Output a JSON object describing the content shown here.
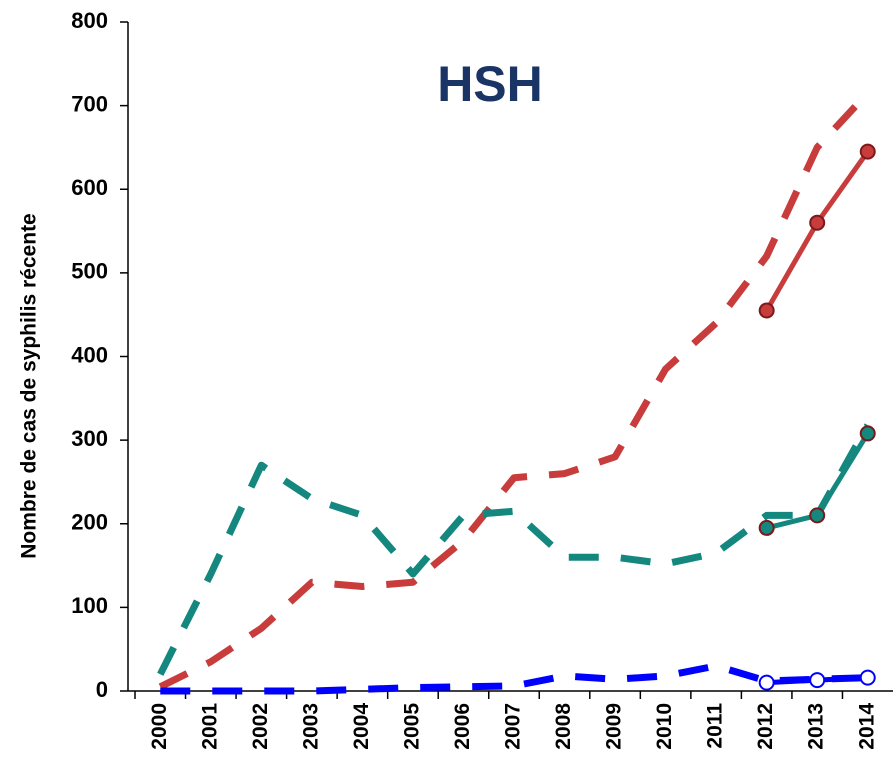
{
  "chart_data": {
    "type": "line",
    "title": "HSH",
    "title_color": "#1a3466",
    "y_label": "Nombre de cas de syphilis récente",
    "categories": [
      "2000",
      "2001",
      "2002",
      "2003",
      "2004",
      "2005",
      "2006",
      "2007",
      "2008",
      "2009",
      "2010",
      "2011",
      "2012",
      "2013",
      "2014"
    ],
    "series": [
      {
        "color": "#c83c3c",
        "style": "dashed",
        "values": [
          5,
          35,
          75,
          130,
          125,
          130,
          180,
          255,
          260,
          280,
          385,
          440,
          520,
          650,
          715
        ]
      },
      {
        "color": "#14877f",
        "style": "dashed",
        "values": [
          20,
          140,
          270,
          230,
          210,
          140,
          210,
          215,
          160,
          160,
          152,
          165,
          210,
          210,
          318
        ]
      },
      {
        "color": "#0000ff",
        "style": "dashed",
        "values": [
          0,
          0,
          0,
          0,
          2,
          4,
          5,
          6,
          18,
          14,
          18,
          30,
          12,
          14,
          16
        ]
      },
      {
        "color": "#c83c3c",
        "style": "solid",
        "marker": "filled",
        "values": [
          null,
          null,
          null,
          null,
          null,
          null,
          null,
          null,
          null,
          null,
          null,
          null,
          455,
          560,
          645
        ]
      },
      {
        "color": "#14877f",
        "style": "solid",
        "marker": "filled",
        "values": [
          null,
          null,
          null,
          null,
          null,
          null,
          null,
          null,
          null,
          null,
          null,
          null,
          195,
          210,
          308
        ]
      },
      {
        "color": "#0000ff",
        "style": "solid",
        "marker": "hollow",
        "values": [
          null,
          null,
          null,
          null,
          null,
          null,
          null,
          null,
          null,
          null,
          null,
          null,
          10,
          13,
          16
        ]
      }
    ],
    "ylim": [
      0,
      800
    ],
    "yticks": [
      0,
      100,
      200,
      300,
      400,
      500,
      600,
      700,
      800
    ],
    "grid": false
  }
}
